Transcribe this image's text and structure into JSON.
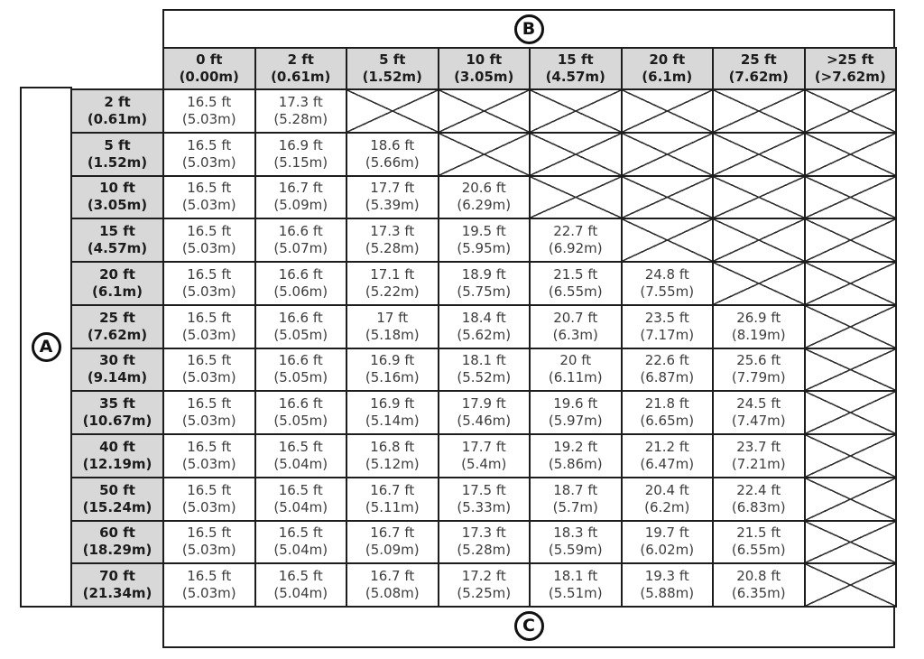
{
  "axis_labels": {
    "top": "B",
    "left": "A",
    "bottom": "C"
  },
  "colors": {
    "header_bg": "#d8d8d8",
    "border": "#1d1d1d",
    "cell_text": "#3d3d3d",
    "header_text": "#1c1c1c"
  },
  "table": {
    "crossed_marker": "X",
    "column_headers": [
      "0 ft|(0.00m)",
      "2 ft|(0.61m)",
      "5 ft|(1.52m)",
      "10 ft|(3.05m)",
      "15 ft|(4.57m)",
      "20 ft|(6.1m)",
      "25 ft|(7.62m)",
      ">25 ft|(>7.62m)"
    ],
    "rows": [
      {
        "header": "2 ft|(0.61m)",
        "cells": [
          "16.5 ft|(5.03m)",
          "17.3 ft|(5.28m)",
          "X",
          "X",
          "X",
          "X",
          "X",
          "X"
        ]
      },
      {
        "header": "5 ft|(1.52m)",
        "cells": [
          "16.5 ft|(5.03m)",
          "16.9 ft|(5.15m)",
          "18.6 ft|(5.66m)",
          "X",
          "X",
          "X",
          "X",
          "X"
        ]
      },
      {
        "header": "10 ft|(3.05m)",
        "cells": [
          "16.5 ft|(5.03m)",
          "16.7 ft|(5.09m)",
          "17.7 ft|(5.39m)",
          "20.6 ft|(6.29m)",
          "X",
          "X",
          "X",
          "X"
        ]
      },
      {
        "header": "15 ft|(4.57m)",
        "cells": [
          "16.5 ft|(5.03m)",
          "16.6 ft|(5.07m)",
          "17.3 ft|(5.28m)",
          "19.5 ft|(5.95m)",
          "22.7 ft|(6.92m)",
          "X",
          "X",
          "X"
        ]
      },
      {
        "header": "20 ft|(6.1m)",
        "cells": [
          "16.5 ft|(5.03m)",
          "16.6 ft|(5.06m)",
          "17.1 ft|(5.22m)",
          "18.9 ft|(5.75m)",
          "21.5 ft|(6.55m)",
          "24.8 ft|(7.55m)",
          "X",
          "X"
        ]
      },
      {
        "header": "25 ft|(7.62m)",
        "cells": [
          "16.5 ft|(5.03m)",
          "16.6 ft|(5.05m)",
          "17 ft|(5.18m)",
          "18.4 ft|(5.62m)",
          "20.7 ft|(6.3m)",
          "23.5 ft|(7.17m)",
          "26.9 ft|(8.19m)",
          "X"
        ]
      },
      {
        "header": "30 ft|(9.14m)",
        "cells": [
          "16.5 ft|(5.03m)",
          "16.6 ft|(5.05m)",
          "16.9 ft|(5.16m)",
          "18.1 ft|(5.52m)",
          "20 ft|(6.11m)",
          "22.6 ft|(6.87m)",
          "25.6 ft|(7.79m)",
          "X"
        ]
      },
      {
        "header": "35 ft|(10.67m)",
        "cells": [
          "16.5 ft|(5.03m)",
          "16.6 ft|(5.05m)",
          "16.9 ft|(5.14m)",
          "17.9 ft|(5.46m)",
          "19.6 ft|(5.97m)",
          "21.8 ft|(6.65m)",
          "24.5 ft|(7.47m)",
          "X"
        ]
      },
      {
        "header": "40 ft|(12.19m)",
        "cells": [
          "16.5 ft|(5.03m)",
          "16.5 ft|(5.04m)",
          "16.8 ft|(5.12m)",
          "17.7 ft|(5.4m)",
          "19.2 ft|(5.86m)",
          "21.2 ft|(6.47m)",
          "23.7 ft|(7.21m)",
          "X"
        ]
      },
      {
        "header": "50 ft|(15.24m)",
        "cells": [
          "16.5 ft|(5.03m)",
          "16.5 ft|(5.04m)",
          "16.7 ft|(5.11m)",
          "17.5 ft|(5.33m)",
          "18.7 ft|(5.7m)",
          "20.4 ft|(6.2m)",
          "22.4 ft|(6.83m)",
          "X"
        ]
      },
      {
        "header": "60 ft|(18.29m)",
        "cells": [
          "16.5 ft|(5.03m)",
          "16.5 ft|(5.04m)",
          "16.7 ft|(5.09m)",
          "17.3 ft|(5.28m)",
          "18.3 ft|(5.59m)",
          "19.7 ft|(6.02m)",
          "21.5 ft|(6.55m)",
          "X"
        ]
      },
      {
        "header": "70 ft|(21.34m)",
        "cells": [
          "16.5 ft|(5.03m)",
          "16.5 ft|(5.04m)",
          "16.7 ft|(5.08m)",
          "17.2 ft|(5.25m)",
          "18.1 ft|(5.51m)",
          "19.3 ft|(5.88m)",
          "20.8 ft|(6.35m)",
          "X"
        ]
      }
    ]
  }
}
